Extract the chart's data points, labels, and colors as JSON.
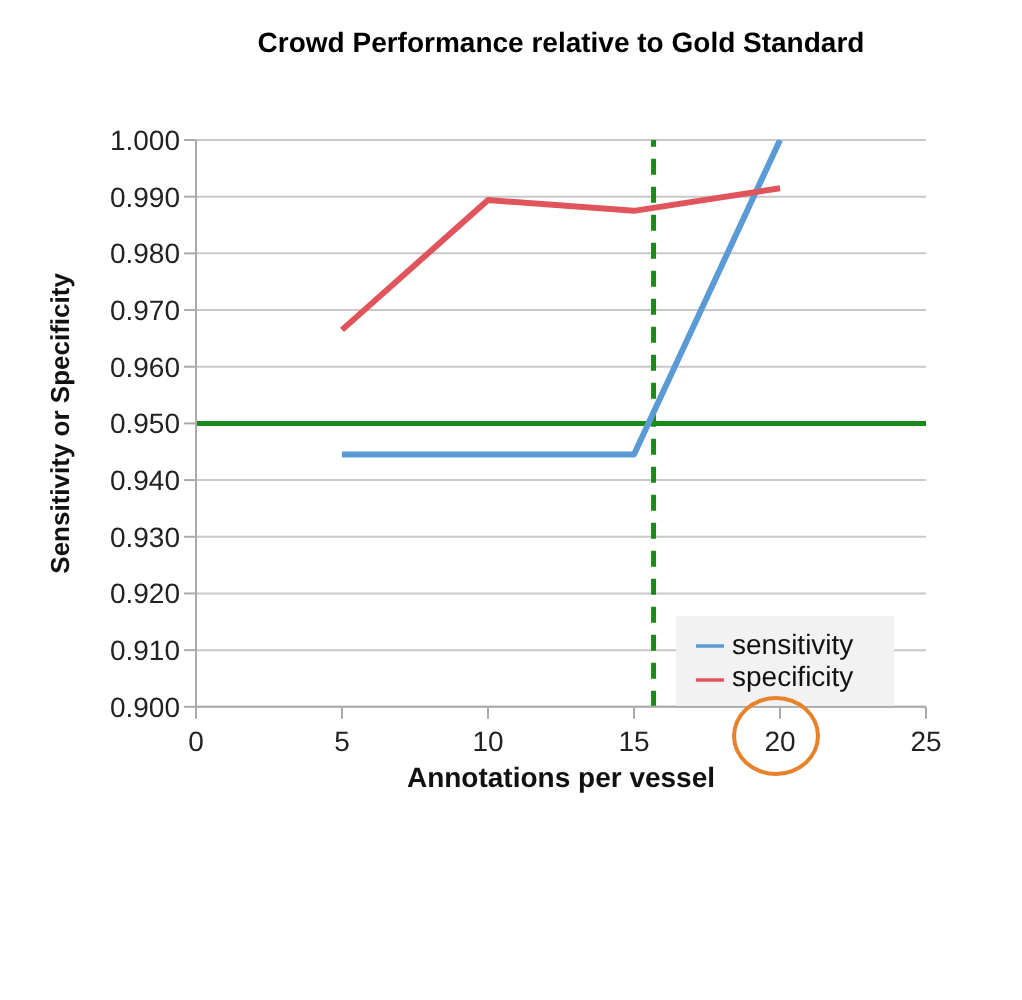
{
  "chart_data": {
    "type": "line",
    "title": "Crowd Performance relative to Gold Standard",
    "xlabel": "Annotations per vessel",
    "ylabel": "Sensitivity or Specificity",
    "x": [
      5,
      10,
      15,
      20
    ],
    "series": [
      {
        "name": "sensitivity",
        "color": "#5b9bd5",
        "values": [
          0.9445,
          0.9445,
          0.9445,
          1.0
        ]
      },
      {
        "name": "specificity",
        "color": "#e0555b",
        "values": [
          0.9665,
          0.9894,
          0.9875,
          0.9915
        ]
      }
    ],
    "xlim": [
      0,
      25
    ],
    "xticks": [
      0,
      5,
      10,
      15,
      20,
      25
    ],
    "ylim": [
      0.9,
      1.0
    ],
    "yticks": [
      {
        "value": 0.9,
        "label": "0.900"
      },
      {
        "value": 0.91,
        "label": "0.910"
      },
      {
        "value": 0.92,
        "label": "0.920"
      },
      {
        "value": 0.93,
        "label": "0.930"
      },
      {
        "value": 0.94,
        "label": "0.940"
      },
      {
        "value": 0.95,
        "label": "0.950"
      },
      {
        "value": 0.96,
        "label": "0.960"
      },
      {
        "value": 0.97,
        "label": "0.970"
      },
      {
        "value": 0.98,
        "label": "0.980"
      },
      {
        "value": 0.99,
        "label": "0.990"
      },
      {
        "value": 1.0,
        "label": "1.000"
      }
    ],
    "ref_lines": [
      {
        "axis": "x",
        "value": 15.67,
        "color": "#1a8a1a",
        "line_style": "dashed"
      },
      {
        "axis": "y",
        "value": 0.95,
        "color": "#1a8a1a",
        "line_style": "solid"
      }
    ],
    "grid": "y",
    "legend": "right",
    "marker": "none",
    "line_style": "solid"
  }
}
